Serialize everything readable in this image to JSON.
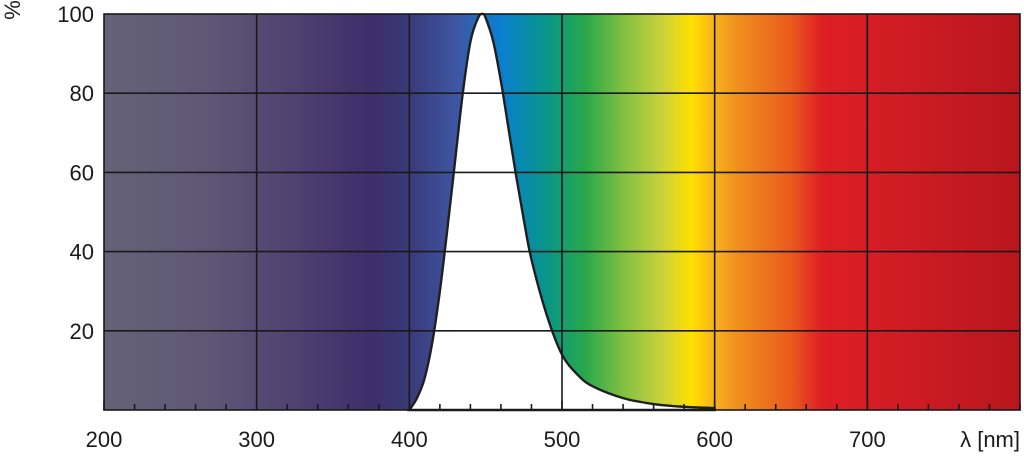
{
  "chart_data": {
    "type": "area",
    "title": "",
    "xlabel": "λ [nm]",
    "ylabel": "%",
    "xlim": [
      200,
      800
    ],
    "ylim": [
      0,
      100
    ],
    "x_ticks": [
      200,
      300,
      400,
      500,
      600,
      700
    ],
    "y_ticks": [
      20,
      40,
      60,
      80,
      100
    ],
    "grid": true,
    "background": "visible-spectrum gradient (UV gray-violet to IR red)",
    "series": [
      {
        "x": [
          400,
          405,
          410,
          415,
          420,
          425,
          430,
          435,
          440,
          445,
          448,
          450,
          455,
          460,
          465,
          470,
          475,
          480,
          490,
          500,
          510,
          520,
          540,
          560,
          580,
          600
        ],
        "y": [
          0,
          3,
          8,
          17,
          30,
          46,
          63,
          80,
          93,
          99,
          100,
          99,
          93,
          83,
          71,
          59,
          48,
          38,
          24,
          14,
          9,
          6,
          3,
          1.5,
          0.8,
          0.5
        ]
      }
    ]
  },
  "colors": {
    "spectrum_stops": [
      {
        "nm": 200,
        "hex": "#656277"
      },
      {
        "nm": 270,
        "hex": "#5e5775"
      },
      {
        "nm": 330,
        "hex": "#4e3f70"
      },
      {
        "nm": 375,
        "hex": "#3e2d6a"
      },
      {
        "nm": 400,
        "hex": "#3a3a78"
      },
      {
        "nm": 430,
        "hex": "#3e55a2"
      },
      {
        "nm": 460,
        "hex": "#0a7fd0"
      },
      {
        "nm": 490,
        "hex": "#089688"
      },
      {
        "nm": 515,
        "hex": "#28a84a"
      },
      {
        "nm": 540,
        "hex": "#80c040"
      },
      {
        "nm": 565,
        "hex": "#c8d23c"
      },
      {
        "nm": 585,
        "hex": "#ffe000"
      },
      {
        "nm": 600,
        "hex": "#f7b21c"
      },
      {
        "nm": 615,
        "hex": "#f0901e"
      },
      {
        "nm": 650,
        "hex": "#ea5a1e"
      },
      {
        "nm": 670,
        "hex": "#de1f24"
      },
      {
        "nm": 720,
        "hex": "#d01c24"
      },
      {
        "nm": 800,
        "hex": "#b8161e"
      }
    ],
    "curve_fill": "#ffffff",
    "grid": "#1a1a1a"
  }
}
